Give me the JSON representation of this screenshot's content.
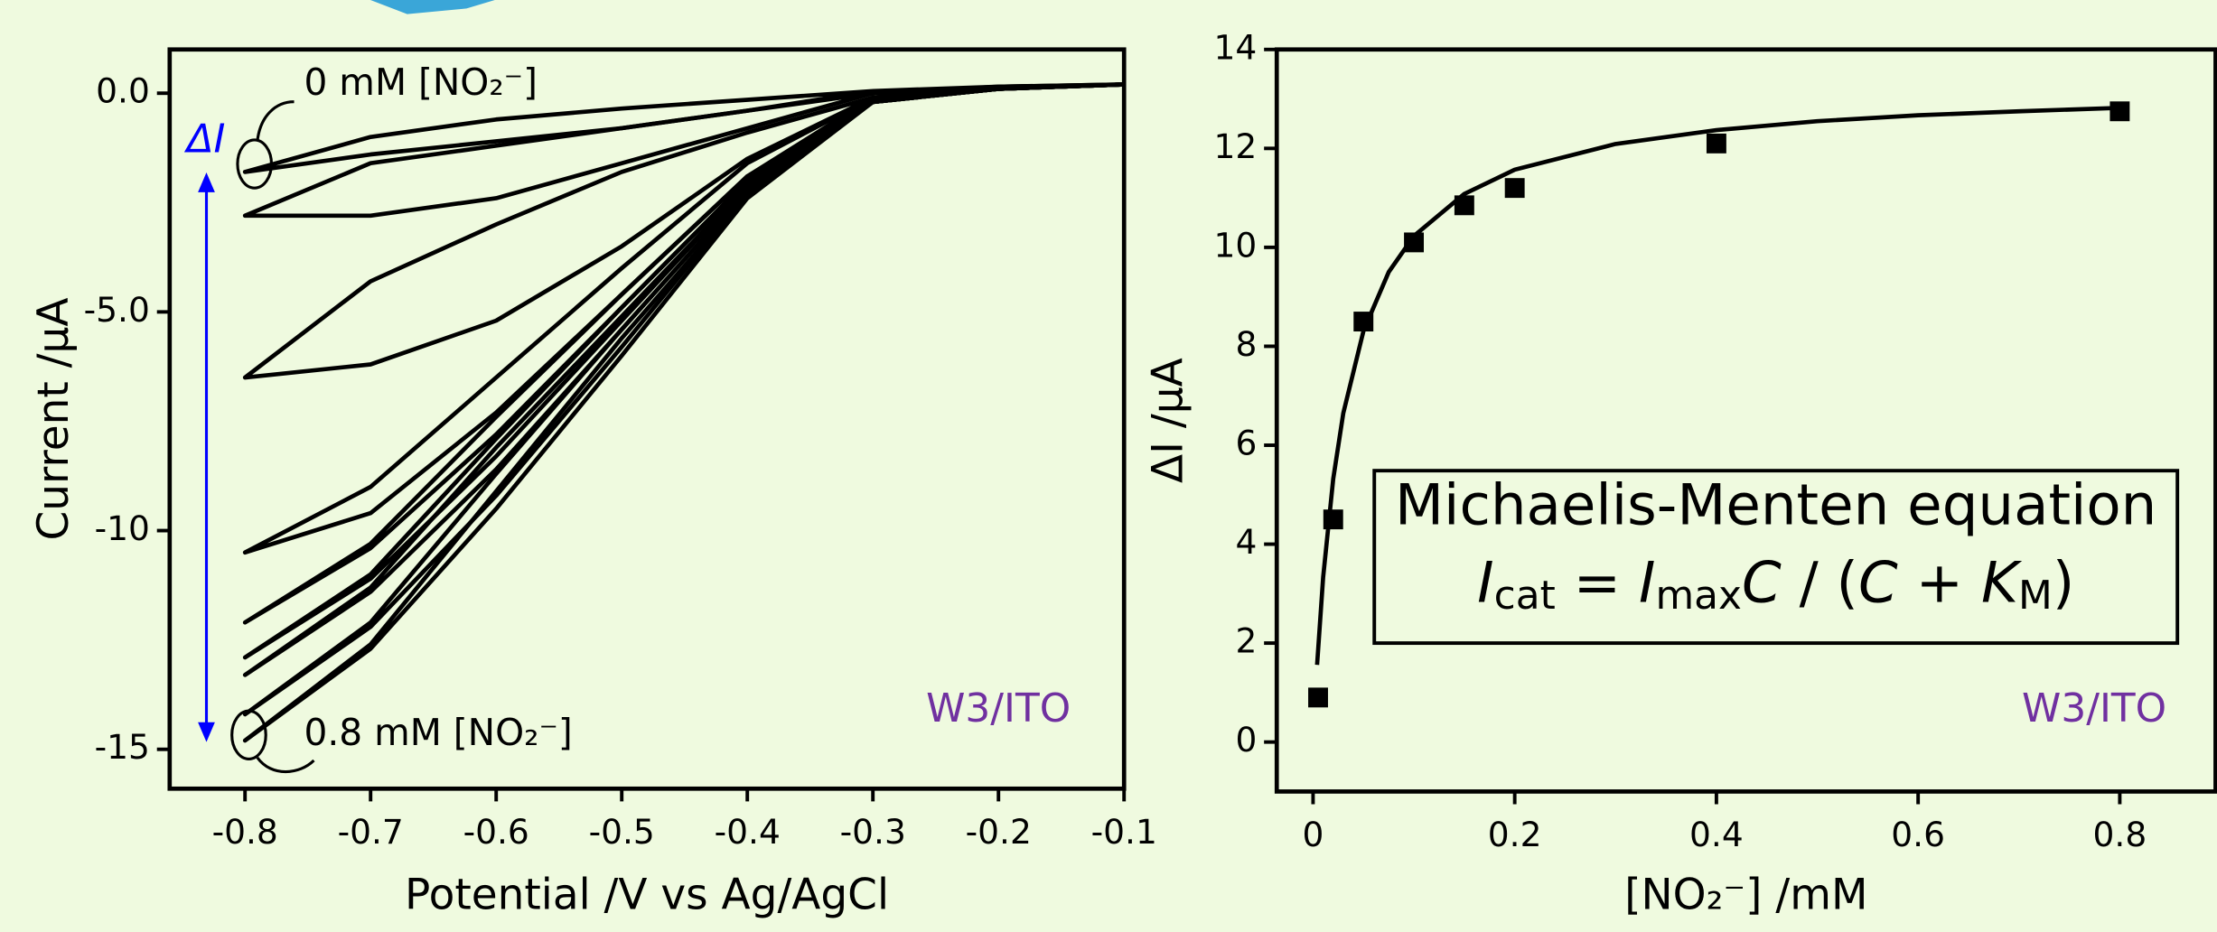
{
  "chart_data": [
    {
      "type": "line",
      "xlabel": "Potential /V vs Ag/AgCl",
      "ylabel": "Current /μA",
      "xlim": [
        -0.86,
        -0.1
      ],
      "ylim": [
        -15.9,
        1
      ],
      "xticks": [
        -0.8,
        -0.7,
        -0.6,
        -0.5,
        -0.4,
        -0.3,
        -0.2,
        -0.1
      ],
      "yticks": [
        {
          "value": 0,
          "label": "0.0"
        },
        {
          "value": -5,
          "label": "-5.0"
        },
        -10,
        -15
      ],
      "color": "#000000",
      "x": [
        -0.1,
        -0.2,
        -0.3,
        -0.4,
        -0.5,
        -0.6,
        -0.7,
        -0.8,
        -0.7,
        -0.6,
        -0.5,
        -0.4,
        -0.3,
        -0.2,
        -0.1
      ],
      "series": [
        {
          "values": [
            0.2,
            0.15,
            0.05,
            -0.4,
            -0.8,
            -1.1,
            -1.4,
            -1.8,
            -1.0,
            -0.6,
            -0.35,
            -0.15,
            0.05,
            0.15,
            0.2
          ]
        },
        {
          "values": [
            0.2,
            0.15,
            0.0,
            -0.8,
            -1.6,
            -2.4,
            -2.8,
            -2.8,
            -1.6,
            -1.2,
            -0.8,
            -0.4,
            0.0,
            0.1,
            0.2
          ]
        },
        {
          "values": [
            0.2,
            0.1,
            -0.1,
            -1.5,
            -3.5,
            -5.2,
            -6.2,
            -6.5,
            -4.3,
            -3.0,
            -1.8,
            -0.9,
            -0.1,
            0.1,
            0.2
          ]
        },
        {
          "values": [
            0.2,
            0.1,
            -0.2,
            -1.9,
            -4.6,
            -7.3,
            -9.6,
            -10.5,
            -9.0,
            -6.5,
            -4.0,
            -1.6,
            -0.1,
            0.1,
            0.2
          ]
        },
        {
          "values": [
            0.2,
            0.1,
            -0.2,
            -2.0,
            -4.9,
            -7.8,
            -10.4,
            -12.1,
            -10.3,
            -7.4,
            -4.6,
            -1.9,
            -0.1,
            0.1,
            0.2
          ]
        },
        {
          "values": [
            0.2,
            0.1,
            -0.2,
            -2.1,
            -5.2,
            -8.3,
            -11.1,
            -12.9,
            -11.0,
            -7.9,
            -4.9,
            -2.0,
            -0.1,
            0.1,
            0.2
          ]
        },
        {
          "values": [
            0.2,
            0.1,
            -0.2,
            -2.2,
            -5.4,
            -8.6,
            -11.4,
            -13.3,
            -11.3,
            -8.1,
            -5.1,
            -2.1,
            -0.1,
            0.1,
            0.2
          ]
        },
        {
          "values": [
            0.2,
            0.1,
            -0.2,
            -2.3,
            -5.8,
            -9.2,
            -12.2,
            -14.2,
            -12.1,
            -8.7,
            -5.4,
            -2.2,
            -0.1,
            0.1,
            0.2
          ]
        },
        {
          "values": [
            0.2,
            0.1,
            -0.2,
            -2.4,
            -6.0,
            -9.5,
            -12.7,
            -14.8,
            -12.6,
            -9.1,
            -5.6,
            -2.3,
            -0.1,
            0.1,
            0.2
          ]
        }
      ],
      "annotations": [
        "0 mM [NO₂⁻]",
        "0.8 mM [NO₂⁻]",
        "ΔI",
        "W3/ITO"
      ]
    },
    {
      "type": "scatter",
      "xlabel": "[NO₂⁻] /mM",
      "ylabel": "ΔI /μA",
      "xlim": [
        -0.036,
        0.895
      ],
      "ylim": [
        -1,
        14
      ],
      "xticks": [
        0,
        0.2,
        0.4,
        0.6,
        0.8
      ],
      "yticks": [
        0,
        2,
        4,
        6,
        8,
        10,
        12,
        14
      ],
      "color": "#000000",
      "series": [
        {
          "type": "scatter",
          "x": [
            0.005,
            0.02,
            0.05,
            0.1,
            0.15,
            0.2,
            0.4,
            0.8
          ],
          "values": [
            0.9,
            4.5,
            8.5,
            10.1,
            10.85,
            11.2,
            12.1,
            12.75
          ]
        },
        {
          "type": "line",
          "x": [
            0.004,
            0.01,
            0.02,
            0.03,
            0.05,
            0.075,
            0.1,
            0.15,
            0.2,
            0.3,
            0.4,
            0.5,
            0.6,
            0.7,
            0.8
          ],
          "values": [
            1.56,
            3.33,
            5.32,
            6.65,
            8.31,
            9.5,
            10.23,
            11.08,
            11.57,
            12.09,
            12.37,
            12.55,
            12.67,
            12.75,
            12.82
          ]
        }
      ],
      "box_title": "Michaelis-Menten equation",
      "formula": [
        "I",
        "cat",
        " = ",
        "I",
        "max",
        "C",
        " / (",
        "C",
        " + ",
        "K",
        "M",
        ")"
      ],
      "annotations": [
        "W3/ITO"
      ]
    }
  ]
}
